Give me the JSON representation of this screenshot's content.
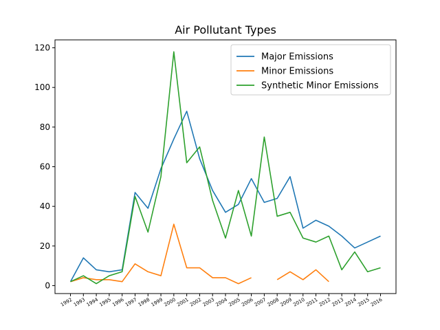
{
  "chart_data": {
    "type": "line",
    "title": "Air Pollutant Types",
    "xlabel": "",
    "ylabel": "",
    "categories": [
      "1992",
      "1993",
      "1994",
      "1995",
      "1996",
      "1997",
      "1998",
      "1999",
      "2000",
      "2001",
      "2002",
      "2003",
      "2004",
      "2005",
      "2006",
      "2007",
      "2008",
      "2009",
      "2010",
      "2011",
      "2012",
      "2013",
      "2014",
      "2015",
      "2016"
    ],
    "ylim": [
      -4,
      124
    ],
    "yticks": [
      0,
      20,
      40,
      60,
      80,
      100,
      120
    ],
    "grid": false,
    "legend_position": "upper-right",
    "series": [
      {
        "name": "Major Emissions",
        "color": "#1f77b4",
        "values": [
          2,
          14,
          8,
          7,
          8,
          47,
          39,
          59,
          74,
          88,
          64,
          48,
          37,
          41,
          54,
          42,
          44,
          55,
          29,
          33,
          30,
          25,
          19,
          22,
          25
        ]
      },
      {
        "name": "Minor Emissions",
        "color": "#ff7f0e",
        "values": [
          2,
          4,
          3,
          3,
          2,
          11,
          7,
          5,
          31,
          9,
          9,
          4,
          4,
          1,
          4,
          null,
          3,
          7,
          3,
          8,
          2,
          null,
          null,
          null,
          null
        ]
      },
      {
        "name": "Synthetic Minor Emissions",
        "color": "#2ca02c",
        "values": [
          2,
          5,
          1,
          5,
          7,
          45,
          27,
          55,
          118,
          62,
          70,
          43,
          24,
          48,
          25,
          75,
          35,
          37,
          24,
          22,
          25,
          8,
          17,
          7,
          9
        ]
      }
    ]
  }
}
